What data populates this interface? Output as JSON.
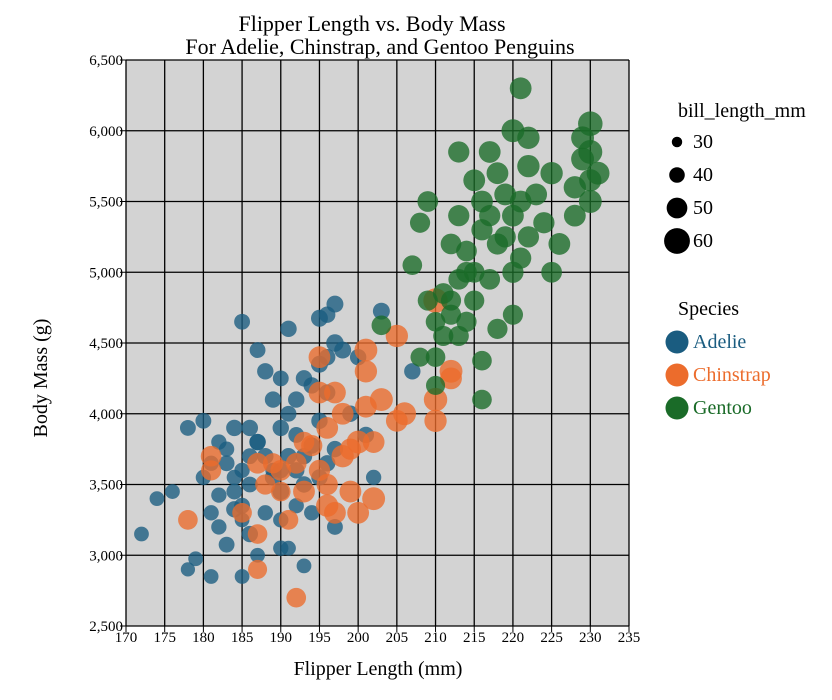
{
  "colors": {
    "background": "#d3d3d3",
    "grid": "#000000",
    "Adelie": "#1a5c80",
    "Chinstrap": "#ec6c2c",
    "Gentoo": "#1a6b28",
    "size_legend": "#000000"
  },
  "chart_data": {
    "type": "scatter",
    "title": "Flipper Length vs. Body Mass",
    "subtitle": "For Adelie, Chinstrap, and Gentoo Penguins",
    "xlabel": "Flipper Length (mm)",
    "ylabel": "Body Mass (g)",
    "xlim": [
      170,
      235
    ],
    "ylim": [
      2500,
      6500
    ],
    "xticks": [
      170,
      175,
      180,
      185,
      190,
      195,
      200,
      205,
      210,
      215,
      220,
      225,
      230,
      235
    ],
    "yticks": [
      2500,
      3000,
      3500,
      4000,
      4500,
      5000,
      5500,
      6000,
      6500
    ],
    "ytick_labels": [
      "2,500",
      "3,000",
      "3,500",
      "4,000",
      "4,500",
      "5,000",
      "5,500",
      "6,000",
      "6,500"
    ],
    "grid": true,
    "legend_position": "right",
    "size_legend": {
      "title": "bill_length_mm",
      "values": [
        30,
        40,
        50,
        60
      ],
      "labels": [
        "30",
        "40",
        "50",
        "60"
      ]
    },
    "color_legend": {
      "title": "Species",
      "entries": [
        "Adelie",
        "Chinstrap",
        "Gentoo"
      ]
    },
    "series": [
      {
        "name": "Adelie",
        "points": [
          [
            172,
            3150,
            37
          ],
          [
            174,
            3400,
            37
          ],
          [
            176,
            3450,
            37
          ],
          [
            178,
            3900,
            39
          ],
          [
            178,
            2900,
            36
          ],
          [
            179,
            2975,
            37
          ],
          [
            180,
            3550,
            38
          ],
          [
            180,
            3950,
            39
          ],
          [
            181,
            3300,
            38
          ],
          [
            181,
            2850,
            37
          ],
          [
            182,
            3200,
            38
          ],
          [
            182,
            3425,
            38
          ],
          [
            183,
            3075,
            39
          ],
          [
            183,
            3650,
            39
          ],
          [
            184,
            3325,
            40
          ],
          [
            184,
            3900,
            40
          ],
          [
            185,
            4650,
            39
          ],
          [
            185,
            3600,
            38
          ],
          [
            185,
            3250,
            37
          ],
          [
            185,
            2850,
            37
          ],
          [
            186,
            3900,
            40
          ],
          [
            186,
            3150,
            40
          ],
          [
            186,
            3500,
            39
          ],
          [
            187,
            4450,
            39
          ],
          [
            187,
            3800,
            40
          ],
          [
            187,
            3000,
            37
          ],
          [
            188,
            3300,
            38
          ],
          [
            188,
            4300,
            40
          ],
          [
            189,
            3600,
            38
          ],
          [
            189,
            4100,
            40
          ],
          [
            190,
            3050,
            38
          ],
          [
            190,
            3600,
            39
          ],
          [
            190,
            4250,
            39
          ],
          [
            190,
            3900,
            40
          ],
          [
            190,
            3450,
            41
          ],
          [
            191,
            4600,
            40
          ],
          [
            191,
            4000,
            39
          ],
          [
            191,
            3700,
            40
          ],
          [
            191,
            3050,
            37
          ],
          [
            192,
            3350,
            38
          ],
          [
            192,
            4100,
            40
          ],
          [
            192,
            3850,
            39
          ],
          [
            193,
            4250,
            40
          ],
          [
            193,
            3500,
            40
          ],
          [
            193,
            2925,
            37
          ],
          [
            194,
            4200,
            40
          ],
          [
            194,
            3775,
            40
          ],
          [
            194,
            3300,
            38
          ],
          [
            195,
            4675,
            41
          ],
          [
            195,
            3950,
            40
          ],
          [
            195,
            4350,
            41
          ],
          [
            196,
            4700,
            40
          ],
          [
            196,
            4400,
            40
          ],
          [
            196,
            3650,
            40
          ],
          [
            196,
            4150,
            40
          ],
          [
            197,
            4775,
            41
          ],
          [
            197,
            4500,
            42
          ],
          [
            197,
            3750,
            40
          ],
          [
            198,
            4450,
            41
          ],
          [
            199,
            4000,
            40
          ],
          [
            200,
            4400,
            40
          ],
          [
            201,
            3850,
            40
          ],
          [
            202,
            3550,
            38
          ],
          [
            203,
            4725,
            41
          ],
          [
            207,
            4300,
            40
          ],
          [
            187,
            3800,
            40
          ],
          [
            189,
            3550,
            40
          ],
          [
            188,
            3700,
            40
          ],
          [
            186,
            3700,
            39
          ],
          [
            184,
            3550,
            38
          ],
          [
            183,
            3750,
            38
          ],
          [
            182,
            3800,
            38
          ],
          [
            181,
            3650,
            38
          ],
          [
            184,
            3450,
            39
          ],
          [
            185,
            3350,
            39
          ],
          [
            192,
            3600,
            40
          ],
          [
            193,
            3700,
            40
          ],
          [
            195,
            3550,
            40
          ],
          [
            197,
            3200,
            39
          ],
          [
            190,
            3250,
            38
          ]
        ]
      },
      {
        "name": "Chinstrap",
        "points": [
          [
            178,
            3250,
            46
          ],
          [
            181,
            3700,
            48
          ],
          [
            181,
            3600,
            47
          ],
          [
            185,
            3300,
            46
          ],
          [
            187,
            3150,
            46
          ],
          [
            187,
            3650,
            48
          ],
          [
            187,
            2900,
            45
          ],
          [
            188,
            3500,
            47
          ],
          [
            189,
            3650,
            47
          ],
          [
            190,
            3450,
            46
          ],
          [
            190,
            3600,
            48
          ],
          [
            191,
            3250,
            46
          ],
          [
            192,
            2700,
            46
          ],
          [
            193,
            3800,
            48
          ],
          [
            193,
            3450,
            50
          ],
          [
            194,
            3775,
            49
          ],
          [
            195,
            4400,
            50
          ],
          [
            195,
            3600,
            49
          ],
          [
            195,
            4150,
            50
          ],
          [
            196,
            3500,
            49
          ],
          [
            196,
            3350,
            51
          ],
          [
            196,
            3900,
            50
          ],
          [
            197,
            3300,
            50
          ],
          [
            197,
            4150,
            50
          ],
          [
            198,
            3700,
            51
          ],
          [
            198,
            4000,
            50
          ],
          [
            199,
            3750,
            49
          ],
          [
            199,
            3450,
            50
          ],
          [
            200,
            3800,
            52
          ],
          [
            200,
            3300,
            50
          ],
          [
            201,
            4050,
            50
          ],
          [
            201,
            4300,
            51
          ],
          [
            201,
            4450,
            52
          ],
          [
            202,
            3400,
            52
          ],
          [
            202,
            3800,
            50
          ],
          [
            203,
            4100,
            52
          ],
          [
            205,
            4550,
            51
          ],
          [
            205,
            3950,
            50
          ],
          [
            206,
            4000,
            52
          ],
          [
            210,
            4800,
            55
          ],
          [
            210,
            4100,
            53
          ],
          [
            212,
            4300,
            52
          ],
          [
            212,
            4250,
            50
          ],
          [
            210,
            3950,
            51
          ],
          [
            192,
            3650,
            48
          ]
        ]
      },
      {
        "name": "Gentoo",
        "points": [
          [
            203,
            4625,
            46
          ],
          [
            207,
            5050,
            46
          ],
          [
            208,
            4400,
            45
          ],
          [
            208,
            5350,
            47
          ],
          [
            209,
            4800,
            47
          ],
          [
            209,
            5500,
            48
          ],
          [
            210,
            4200,
            45
          ],
          [
            210,
            4650,
            46
          ],
          [
            210,
            4400,
            46
          ],
          [
            211,
            4550,
            47
          ],
          [
            211,
            4850,
            48
          ],
          [
            212,
            5200,
            48
          ],
          [
            212,
            4700,
            47
          ],
          [
            213,
            5400,
            49
          ],
          [
            213,
            4950,
            48
          ],
          [
            213,
            5850,
            49
          ],
          [
            214,
            4650,
            47
          ],
          [
            214,
            5150,
            48
          ],
          [
            215,
            5650,
            50
          ],
          [
            215,
            4800,
            47
          ],
          [
            215,
            5000,
            48
          ],
          [
            216,
            5500,
            50
          ],
          [
            216,
            4100,
            46
          ],
          [
            216,
            4375,
            46
          ],
          [
            216,
            5300,
            49
          ],
          [
            217,
            5850,
            50
          ],
          [
            217,
            4950,
            48
          ],
          [
            217,
            5400,
            49
          ],
          [
            218,
            5700,
            50
          ],
          [
            218,
            4600,
            47
          ],
          [
            218,
            5200,
            49
          ],
          [
            219,
            5250,
            49
          ],
          [
            219,
            5550,
            50
          ],
          [
            220,
            5000,
            49
          ],
          [
            220,
            5400,
            50
          ],
          [
            220,
            6000,
            52
          ],
          [
            220,
            4700,
            47
          ],
          [
            221,
            5100,
            49
          ],
          [
            221,
            5500,
            50
          ],
          [
            221,
            6300,
            50
          ],
          [
            222,
            5250,
            49
          ],
          [
            222,
            5750,
            51
          ],
          [
            222,
            5950,
            51
          ],
          [
            223,
            5550,
            50
          ],
          [
            224,
            5350,
            49
          ],
          [
            225,
            5700,
            51
          ],
          [
            225,
            5000,
            48
          ],
          [
            226,
            5200,
            50
          ],
          [
            228,
            5600,
            51
          ],
          [
            229,
            5800,
            52
          ],
          [
            230,
            5500,
            52
          ],
          [
            230,
            6050,
            55
          ],
          [
            230,
            5650,
            51
          ],
          [
            231,
            5700,
            52
          ],
          [
            229,
            5950,
            52
          ],
          [
            228,
            5400,
            50
          ],
          [
            230,
            5850,
            54
          ],
          [
            212,
            4800,
            47
          ],
          [
            214,
            5000,
            48
          ],
          [
            213,
            4550,
            47
          ]
        ]
      }
    ]
  }
}
